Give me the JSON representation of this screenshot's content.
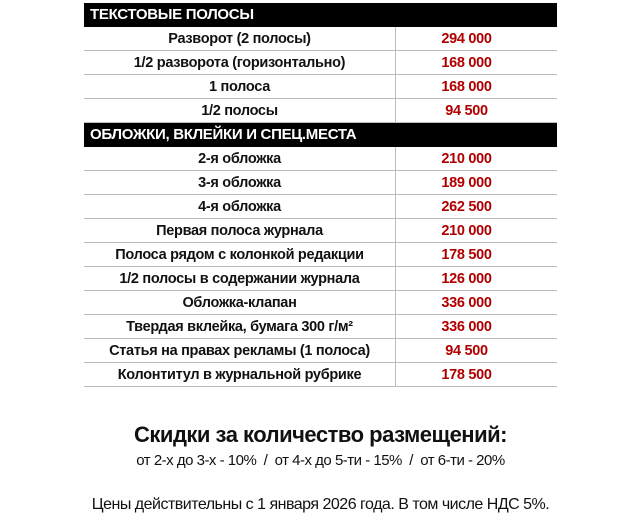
{
  "sections": [
    {
      "title": "ТЕКСТОВЫЕ ПОЛОСЫ",
      "rows": [
        {
          "name": "Разворот (2 полосы)",
          "price": "294 000"
        },
        {
          "name": "1/2 разворота (горизонтально)",
          "price": "168 000"
        },
        {
          "name": "1 полоса",
          "price": "168 000"
        },
        {
          "name": "1/2 полосы",
          "price": "94 500"
        }
      ]
    },
    {
      "title": "ОБЛОЖКИ, ВКЛЕЙКИ И СПЕЦ.МЕСТА",
      "rows": [
        {
          "name": "2-я обложка",
          "price": "210 000"
        },
        {
          "name": "3-я обложка",
          "price": "189 000"
        },
        {
          "name": "4-я обложка",
          "price": "262 500"
        },
        {
          "name": "Первая полоса журнала",
          "price": "210 000"
        },
        {
          "name": "Полоса рядом с колонкой редакции",
          "price": "178 500"
        },
        {
          "name": "1/2 полосы в содержании журнала",
          "price": "126 000"
        },
        {
          "name": "Обложка-клапан",
          "price": "336 000"
        },
        {
          "name": "Твердая вклейка, бумага 300 г/м²",
          "price": "336 000"
        },
        {
          "name": "Статья на правах рекламы (1 полоса)",
          "price": "94 500"
        },
        {
          "name": "Колонтитул в журнальной рубрике",
          "price": "178 500"
        }
      ]
    }
  ],
  "discounts": {
    "title": "Скидки за количество размещений:",
    "line": "от 2-х до 3-х - 10%  /  от 4-х до 5-ти - 15%  /  от 6-ти - 20%"
  },
  "footer": "Цены действительны с 1 января 2026 года. В том числе НДС 5%.",
  "colors": {
    "price": "#b00000",
    "section_bg": "#000000"
  }
}
